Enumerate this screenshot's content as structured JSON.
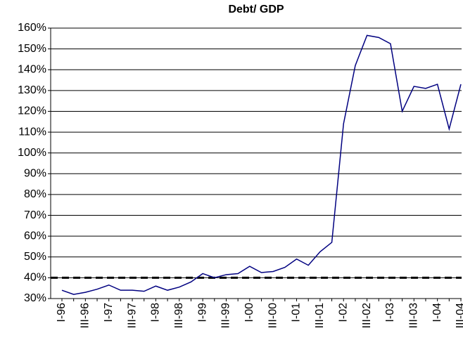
{
  "chart_data": {
    "type": "line",
    "title": "Debt/ GDP",
    "categories": [
      "I-96",
      null,
      "III-96",
      null,
      "I-97",
      null,
      "III-97",
      null,
      "I-98",
      null,
      "III-98",
      null,
      "I-99",
      null,
      "III-99",
      null,
      "I-00",
      null,
      "III-00",
      null,
      "I-01",
      null,
      "III-01",
      null,
      "I-02",
      null,
      "III-02",
      null,
      "I-03",
      null,
      "III-03",
      null,
      "I-04",
      null,
      "III-04"
    ],
    "series": [
      {
        "color": "#000080",
        "values": [
          34,
          32,
          33,
          34.5,
          36.5,
          34,
          34,
          33.5,
          36,
          34,
          35.5,
          38,
          42,
          40,
          41.5,
          42,
          45.5,
          42.5,
          43,
          45,
          49,
          46,
          52.5,
          57,
          114,
          142,
          156.5,
          155.5,
          152.5,
          120,
          132,
          131,
          133,
          111.5,
          133
        ]
      }
    ],
    "reference_line": 40,
    "ylim": [
      30,
      160
    ],
    "yticks": [
      {
        "value": 30,
        "label": "30%"
      },
      {
        "value": 40,
        "label": "40%"
      },
      {
        "value": 50,
        "label": "50%"
      },
      {
        "value": 60,
        "label": "60%"
      },
      {
        "value": 70,
        "label": "70%"
      },
      {
        "value": 80,
        "label": "80%"
      },
      {
        "value": 90,
        "label": "90%"
      },
      {
        "value": 100,
        "label": "100%"
      },
      {
        "value": 110,
        "label": "110%"
      },
      {
        "value": 120,
        "label": "120%"
      },
      {
        "value": 130,
        "label": "130%"
      },
      {
        "value": 140,
        "label": "140%"
      },
      {
        "value": 150,
        "label": "150%"
      },
      {
        "value": 160,
        "label": "160%"
      }
    ],
    "grid": true
  }
}
